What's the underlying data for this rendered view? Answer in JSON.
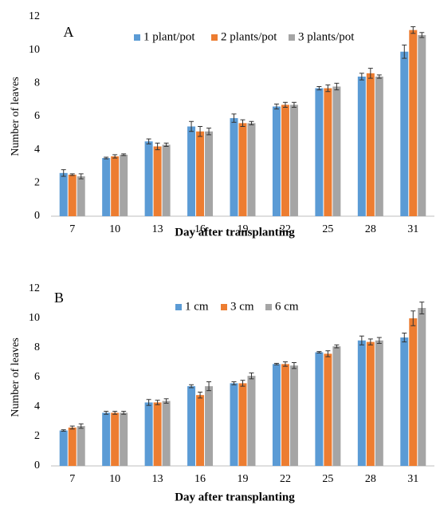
{
  "chart_data": [
    {
      "type": "bar",
      "label": "A",
      "x_label": "Day after transplanting",
      "y_label": "Number of leaves",
      "categories": [
        "7",
        "10",
        "13",
        "16",
        "19",
        "22",
        "25",
        "28",
        "31"
      ],
      "ylim": [
        0,
        12
      ],
      "yticks": [
        0,
        2,
        4,
        6,
        8,
        10,
        12
      ],
      "series": [
        {
          "name": "1 plant/pot",
          "color": "#5b9bd5",
          "values": [
            2.6,
            3.5,
            4.5,
            5.4,
            5.9,
            6.6,
            7.7,
            8.4,
            9.9
          ],
          "errors": [
            0.2,
            0.05,
            0.15,
            0.3,
            0.25,
            0.15,
            0.1,
            0.2,
            0.4
          ]
        },
        {
          "name": "2 plants/pot",
          "color": "#ed7d31",
          "values": [
            2.5,
            3.6,
            4.2,
            5.1,
            5.6,
            6.7,
            7.7,
            8.6,
            11.2
          ],
          "errors": [
            0.05,
            0.1,
            0.2,
            0.3,
            0.2,
            0.15,
            0.2,
            0.3,
            0.2
          ]
        },
        {
          "name": "3 plants/pot",
          "color": "#a5a5a5",
          "values": [
            2.4,
            3.7,
            4.3,
            5.1,
            5.6,
            6.7,
            7.8,
            8.4,
            10.9
          ],
          "errors": [
            0.15,
            0.05,
            0.1,
            0.2,
            0.1,
            0.15,
            0.2,
            0.1,
            0.15
          ]
        }
      ]
    },
    {
      "type": "bar",
      "label": "B",
      "x_label": "Day after transplanting",
      "y_label": "Number of leaves",
      "categories": [
        "7",
        "10",
        "13",
        "16",
        "19",
        "22",
        "25",
        "28",
        "31"
      ],
      "ylim": [
        0,
        12
      ],
      "yticks": [
        0,
        2,
        4,
        6,
        8,
        10,
        12
      ],
      "series": [
        {
          "name": "1 cm",
          "color": "#5b9bd5",
          "values": [
            2.4,
            3.6,
            4.3,
            5.4,
            5.6,
            6.9,
            7.7,
            8.5,
            8.7
          ],
          "errors": [
            0.05,
            0.1,
            0.2,
            0.1,
            0.1,
            0.05,
            0.05,
            0.3,
            0.3
          ]
        },
        {
          "name": "3 cm",
          "color": "#ed7d31",
          "values": [
            2.6,
            3.6,
            4.3,
            4.8,
            5.6,
            6.9,
            7.6,
            8.4,
            10.0
          ],
          "errors": [
            0.1,
            0.1,
            0.15,
            0.2,
            0.2,
            0.15,
            0.2,
            0.2,
            0.5
          ]
        },
        {
          "name": "6 cm",
          "color": "#a5a5a5",
          "values": [
            2.7,
            3.6,
            4.4,
            5.4,
            6.1,
            6.8,
            8.1,
            8.5,
            10.7
          ],
          "errors": [
            0.15,
            0.1,
            0.15,
            0.3,
            0.2,
            0.2,
            0.1,
            0.2,
            0.4
          ]
        }
      ]
    }
  ]
}
